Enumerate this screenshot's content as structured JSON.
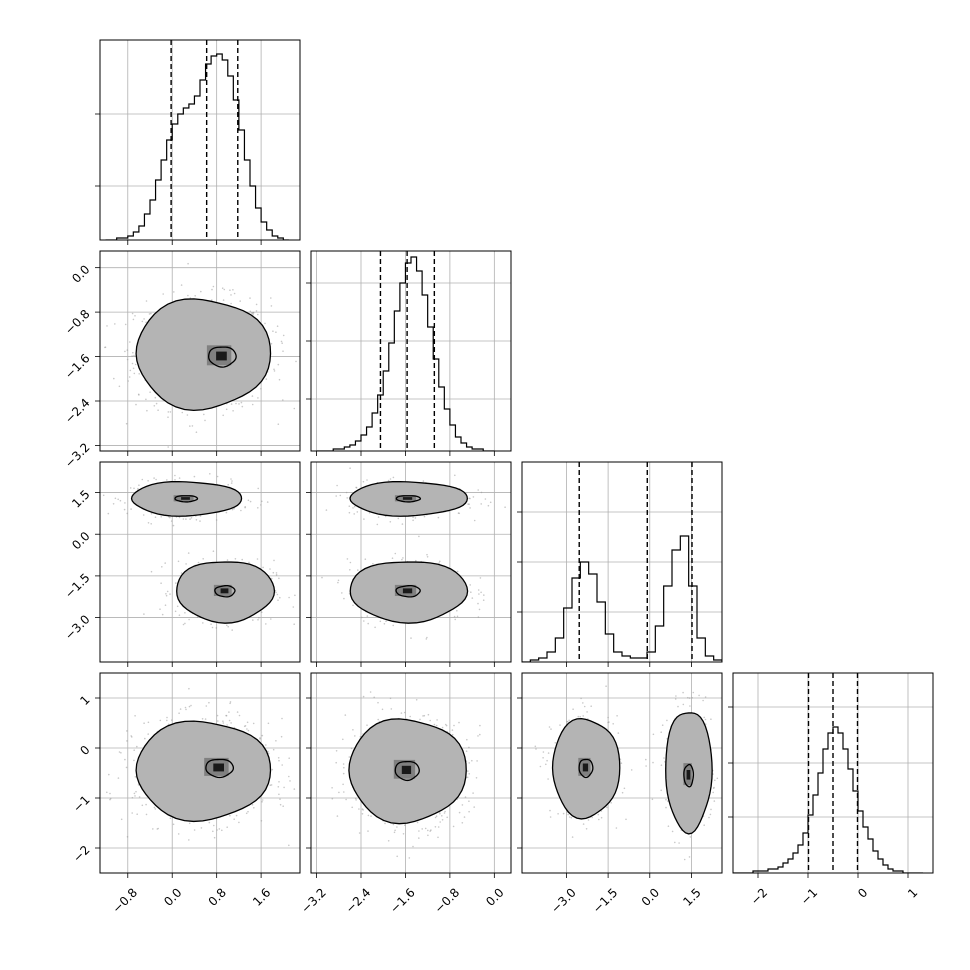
{
  "chart_data": {
    "type": "corner",
    "n_params": 4,
    "ranges": [
      [
        -1.3,
        2.3
      ],
      [
        -3.3,
        0.3
      ],
      [
        -4.6,
        2.6
      ],
      [
        -2.5,
        1.5
      ]
    ],
    "ticks": [
      {
        "values": [
          -0.8,
          0.0,
          0.8,
          1.6
        ],
        "labels": [
          "−0.8",
          "0.0",
          "0.8",
          "1.6"
        ]
      },
      {
        "values": [
          -3.2,
          -2.4,
          -1.6,
          -0.8,
          0.0
        ],
        "labels": [
          "−3.2",
          "−2.4",
          "−1.6",
          "−0.8",
          "0.0"
        ]
      },
      {
        "values": [
          -3.0,
          -1.5,
          0.0,
          1.5
        ],
        "labels": [
          "−3.0",
          "−1.5",
          "0.0",
          "1.5"
        ]
      },
      {
        "values": [
          -2,
          -1,
          0,
          1
        ],
        "labels": [
          "−2",
          "−1",
          "0",
          "1"
        ]
      }
    ],
    "hist_yticks": [
      [
        0.27,
        0.63
      ],
      [
        0.26,
        0.55,
        0.84
      ],
      [
        0.25,
        0.5,
        0.75
      ],
      [
        0.28,
        0.55,
        0.83
      ]
    ],
    "histograms": [
      {
        "x": [
          -1.15,
          -1.05,
          -0.95,
          -0.85,
          -0.75,
          -0.65,
          -0.55,
          -0.45,
          -0.35,
          -0.25,
          -0.15,
          -0.05,
          0.05,
          0.15,
          0.25,
          0.35,
          0.45,
          0.55,
          0.65,
          0.75,
          0.85,
          0.95,
          1.05,
          1.15,
          1.25,
          1.35,
          1.45,
          1.55,
          1.65,
          1.75,
          1.85,
          1.95,
          2.05
        ],
        "y": [
          0.0,
          0.0,
          0.01,
          0.01,
          0.02,
          0.04,
          0.07,
          0.13,
          0.2,
          0.3,
          0.4,
          0.5,
          0.58,
          0.63,
          0.66,
          0.68,
          0.72,
          0.8,
          0.88,
          0.92,
          0.93,
          0.9,
          0.82,
          0.7,
          0.55,
          0.4,
          0.27,
          0.16,
          0.09,
          0.05,
          0.02,
          0.01,
          0.0
        ],
        "quantiles": [
          -0.02,
          0.62,
          1.18
        ]
      },
      {
        "x": [
          -3.15,
          -3.05,
          -2.95,
          -2.85,
          -2.75,
          -2.65,
          -2.55,
          -2.45,
          -2.35,
          -2.25,
          -2.15,
          -2.05,
          -1.95,
          -1.85,
          -1.75,
          -1.65,
          -1.55,
          -1.45,
          -1.35,
          -1.25,
          -1.15,
          -1.05,
          -0.95,
          -0.85,
          -0.75,
          -0.65,
          -0.55,
          -0.45,
          -0.35,
          -0.25,
          -0.15,
          -0.05
        ],
        "y": [
          0.0,
          0.0,
          0.0,
          0.01,
          0.01,
          0.02,
          0.03,
          0.05,
          0.08,
          0.12,
          0.19,
          0.28,
          0.4,
          0.54,
          0.7,
          0.84,
          0.94,
          0.97,
          0.9,
          0.78,
          0.62,
          0.46,
          0.32,
          0.21,
          0.13,
          0.07,
          0.04,
          0.02,
          0.01,
          0.01,
          0.0,
          0.0
        ],
        "quantiles": [
          -2.05,
          -1.57,
          -1.08
        ]
      },
      {
        "x": [
          -4.45,
          -4.15,
          -3.85,
          -3.55,
          -3.25,
          -2.95,
          -2.65,
          -2.35,
          -2.05,
          -1.75,
          -1.45,
          -1.15,
          -0.85,
          -0.55,
          -0.25,
          0.05,
          0.35,
          0.65,
          0.95,
          1.25,
          1.55,
          1.85,
          2.15,
          2.45
        ],
        "y": [
          0.0,
          0.01,
          0.02,
          0.05,
          0.12,
          0.27,
          0.42,
          0.5,
          0.44,
          0.3,
          0.14,
          0.05,
          0.03,
          0.02,
          0.02,
          0.05,
          0.18,
          0.38,
          0.56,
          0.63,
          0.38,
          0.12,
          0.03,
          0.01
        ],
        "quantiles": [
          -2.54,
          -0.09,
          1.52
        ]
      },
      {
        "x": [
          -2.45,
          -2.35,
          -2.25,
          -2.15,
          -2.05,
          -1.95,
          -1.85,
          -1.75,
          -1.65,
          -1.55,
          -1.45,
          -1.35,
          -1.25,
          -1.15,
          -1.05,
          -0.95,
          -0.85,
          -0.75,
          -0.65,
          -0.55,
          -0.45,
          -0.35,
          -0.25,
          -0.15,
          -0.05,
          0.05,
          0.15,
          0.25,
          0.35,
          0.45,
          0.55,
          0.65,
          0.75,
          0.85,
          0.95,
          1.05,
          1.15,
          1.25
        ],
        "y": [
          0.0,
          0.0,
          0.0,
          0.0,
          0.01,
          0.01,
          0.01,
          0.02,
          0.02,
          0.03,
          0.05,
          0.07,
          0.1,
          0.14,
          0.2,
          0.29,
          0.39,
          0.5,
          0.62,
          0.7,
          0.73,
          0.7,
          0.62,
          0.52,
          0.41,
          0.31,
          0.23,
          0.17,
          0.11,
          0.07,
          0.04,
          0.02,
          0.01,
          0.01,
          0.0,
          0.0,
          0.0,
          0.0
        ],
        "quantiles": [
          -0.99,
          -0.5,
          -0.01
        ]
      }
    ],
    "clusters_2d": [
      {
        "row": 1,
        "col": 0,
        "blobs": [
          {
            "cx": 0.55,
            "cy": -1.55,
            "sx": 0.55,
            "sy": 0.45,
            "peak_dx": 0.35,
            "peak_dy": -0.05
          }
        ]
      },
      {
        "row": 2,
        "col": 0,
        "blobs": [
          {
            "cx": 0.25,
            "cy": 1.28,
            "sx": 0.45,
            "sy": 0.28,
            "peak_dx": 0.0,
            "peak_dy": 0.0
          },
          {
            "cx": 0.95,
            "cy": -2.05,
            "sx": 0.4,
            "sy": 0.5,
            "peak_dx": 0.0,
            "peak_dy": 0.0
          }
        ]
      },
      {
        "row": 2,
        "col": 1,
        "blobs": [
          {
            "cx": -1.55,
            "cy": 1.28,
            "sx": 0.48,
            "sy": 0.28,
            "peak_dx": 0.0,
            "peak_dy": 0.0
          },
          {
            "cx": -1.55,
            "cy": -2.05,
            "sx": 0.48,
            "sy": 0.5,
            "peak_dx": 0.0,
            "peak_dy": 0.0
          }
        ]
      },
      {
        "row": 3,
        "col": 0,
        "blobs": [
          {
            "cx": 0.55,
            "cy": -0.45,
            "sx": 0.55,
            "sy": 0.45,
            "peak_dx": 0.3,
            "peak_dy": 0.05
          }
        ]
      },
      {
        "row": 3,
        "col": 1,
        "blobs": [
          {
            "cx": -1.57,
            "cy": -0.45,
            "sx": 0.48,
            "sy": 0.47,
            "peak_dx": 0.0,
            "peak_dy": 0.0
          }
        ]
      },
      {
        "row": 3,
        "col": 2,
        "blobs": [
          {
            "cx": -2.3,
            "cy": -0.4,
            "sx": 0.55,
            "sy": 0.45,
            "peak_dx": 0.0,
            "peak_dy": 0.0
          },
          {
            "cx": 1.4,
            "cy": -0.45,
            "sx": 0.38,
            "sy": 0.55,
            "peak_dx": 0.0,
            "peak_dy": -0.1
          }
        ]
      }
    ],
    "contour_levels": [
      1.0,
      1.6,
      2.2
    ],
    "grid": true,
    "title": "",
    "xlabel": "",
    "ylabel": ""
  }
}
